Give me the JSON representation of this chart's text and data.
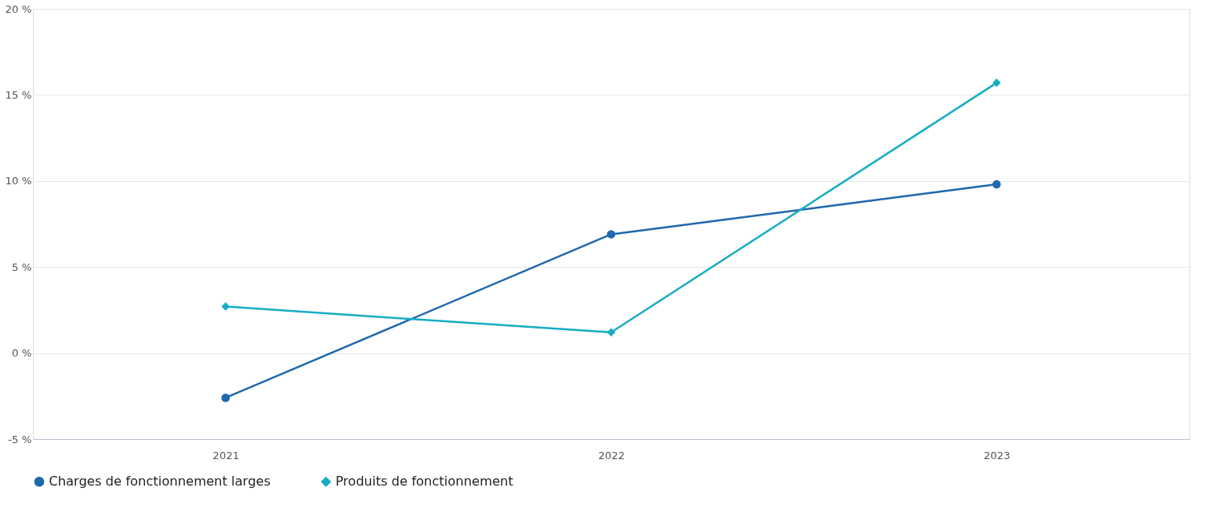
{
  "chart_data": {
    "type": "line",
    "categories": [
      "2021",
      "2022",
      "2023"
    ],
    "series": [
      {
        "name": "Charges de fonctionnement larges",
        "color": "#1f68ad",
        "marker": "circle",
        "values": [
          -2.6,
          6.9,
          9.8
        ]
      },
      {
        "name": "Produits de fonctionnement",
        "color": "#17adc3",
        "marker": "diamond",
        "values": [
          2.7,
          1.2,
          15.7
        ]
      }
    ],
    "ylim": [
      -5,
      20
    ],
    "yticks": [
      {
        "value": -5,
        "label": "-5 %"
      },
      {
        "value": 0,
        "label": "0 %"
      },
      {
        "value": 5,
        "label": "5 %"
      },
      {
        "value": 10,
        "label": "10 %"
      },
      {
        "value": 15,
        "label": "15 %"
      },
      {
        "value": 20,
        "label": "20 %"
      }
    ],
    "grid": "y",
    "legend": "bottom",
    "line_style": "solid"
  }
}
